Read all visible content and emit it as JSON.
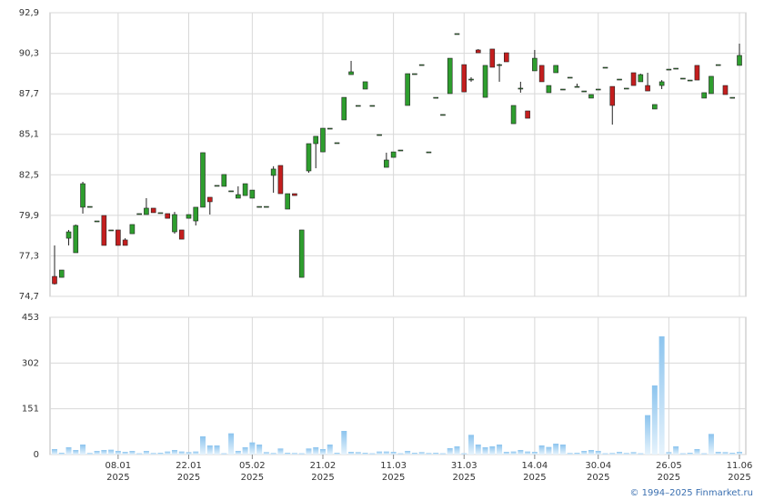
{
  "chart_data": {
    "type": "candlestick",
    "xticks": [
      {
        "value": 9,
        "label": "08.01",
        "year": "2025"
      },
      {
        "value": 19,
        "label": "22.01",
        "year": "2025"
      },
      {
        "value": 28,
        "label": "05.02",
        "year": "2025"
      },
      {
        "value": 38,
        "label": "21.02",
        "year": "2025"
      },
      {
        "value": 48,
        "label": "11.03",
        "year": "2025"
      },
      {
        "value": 58,
        "label": "31.03",
        "year": "2025"
      },
      {
        "value": 68,
        "label": "14.04",
        "year": "2025"
      },
      {
        "value": 77,
        "label": "30.04",
        "year": "2025"
      },
      {
        "value": 87,
        "label": "26.05",
        "year": "2025"
      },
      {
        "value": 97,
        "label": "11.06",
        "year": "2025"
      }
    ],
    "ylim": [
      74.7,
      92.9
    ],
    "yticks": [
      {
        "value": 92.9,
        "label": "92,9"
      },
      {
        "value": 90.3,
        "label": "90,3"
      },
      {
        "value": 87.7,
        "label": "87,7"
      },
      {
        "value": 85.1,
        "label": "85,1"
      },
      {
        "value": 82.5,
        "label": "82,5"
      },
      {
        "value": 79.9,
        "label": "79,9"
      },
      {
        "value": 77.3,
        "label": "77,3"
      },
      {
        "value": 74.7,
        "label": "74,7"
      }
    ],
    "vlim": [
      0,
      453
    ],
    "vticks": [
      453,
      302,
      151,
      0
    ],
    "up_color": "#2e9e2e",
    "down_color": "#c41e1e",
    "volume_color": "#8cc4ee",
    "grid": true,
    "open": [
      75.98,
      75.92,
      78.43,
      77.5,
      80.42,
      80.47,
      79.54,
      79.89,
      78.96,
      78.96,
      78.32,
      78.72,
      80.01,
      79.95,
      80.36,
      80.07,
      80.01,
      78.84,
      78.96,
      79.71,
      79.54,
      80.42,
      81.06,
      81.82,
      81.76,
      81.47,
      81.0,
      81.17,
      81.0,
      80.47,
      80.47,
      82.46,
      83.1,
      80.3,
      81.29,
      75.92,
      82.75,
      84.5,
      83.97,
      85.49,
      84.56,
      86.02,
      88.93,
      86.95,
      88.0,
      86.95,
      85.08,
      82.98,
      83.62,
      84.09,
      86.95,
      88.99,
      89.57,
      83.97,
      87.47,
      86.37,
      87.71,
      91.56,
      89.57,
      88.64,
      90.51,
      87.47,
      90.57,
      89.57,
      90.33,
      85.78,
      88.06,
      86.6,
      89.17,
      89.52,
      87.77,
      89.05,
      88.0,
      88.76,
      88.17,
      87.88,
      87.42,
      88.0,
      89.4,
      88.17,
      88.64,
      88.06,
      89.05,
      88.47,
      88.23,
      86.72,
      88.23,
      89.28,
      89.34,
      88.7,
      88.58,
      89.52,
      87.42,
      87.71,
      89.57,
      88.23,
      87.47,
      89.52
    ],
    "high": [
      77.97,
      76.39,
      78.96,
      79.31,
      82.05,
      80.47,
      79.54,
      79.89,
      78.96,
      78.96,
      78.43,
      79.31,
      80.01,
      81.0,
      80.36,
      80.07,
      80.01,
      80.12,
      78.96,
      79.95,
      80.42,
      83.92,
      81.06,
      81.82,
      82.52,
      81.47,
      81.76,
      81.93,
      81.52,
      80.47,
      80.47,
      83.05,
      83.1,
      81.29,
      81.29,
      78.96,
      84.5,
      84.97,
      85.49,
      85.49,
      84.56,
      87.47,
      89.81,
      86.95,
      88.47,
      86.95,
      85.08,
      83.92,
      83.97,
      84.09,
      88.99,
      88.99,
      89.57,
      83.97,
      87.47,
      86.37,
      89.98,
      91.56,
      89.57,
      88.76,
      90.57,
      89.52,
      90.57,
      89.63,
      90.33,
      86.95,
      88.47,
      86.6,
      90.51,
      89.52,
      88.23,
      89.52,
      88.0,
      88.76,
      88.35,
      87.88,
      87.65,
      88.0,
      89.4,
      88.17,
      88.64,
      88.06,
      89.05,
      88.99,
      89.05,
      87.01,
      88.58,
      89.28,
      89.34,
      88.7,
      88.58,
      89.52,
      87.77,
      88.82,
      89.57,
      88.23,
      87.47,
      90.92
    ],
    "low": [
      75.46,
      75.92,
      77.97,
      77.5,
      80.01,
      80.47,
      79.54,
      77.97,
      78.96,
      77.97,
      77.97,
      78.72,
      80.01,
      79.95,
      80.07,
      80.07,
      79.71,
      78.72,
      78.37,
      79.71,
      79.25,
      80.42,
      79.95,
      81.82,
      81.76,
      81.47,
      81.0,
      81.17,
      81.0,
      80.47,
      80.47,
      81.35,
      81.29,
      80.3,
      81.17,
      75.92,
      82.63,
      82.92,
      83.97,
      85.49,
      84.56,
      86.02,
      88.93,
      86.95,
      88.0,
      86.95,
      85.08,
      82.98,
      83.62,
      84.09,
      86.95,
      88.99,
      89.57,
      83.97,
      87.47,
      86.37,
      87.71,
      91.56,
      87.82,
      88.47,
      90.33,
      87.47,
      89.4,
      88.47,
      89.75,
      85.78,
      87.77,
      86.13,
      89.17,
      88.47,
      87.77,
      89.05,
      88.0,
      88.76,
      88.17,
      87.88,
      87.42,
      88.0,
      89.4,
      85.72,
      88.64,
      88.06,
      88.23,
      88.47,
      87.88,
      86.72,
      88.0,
      89.28,
      89.34,
      88.7,
      88.58,
      88.58,
      87.42,
      87.71,
      89.57,
      87.65,
      87.47,
      89.52
    ],
    "close": [
      75.51,
      76.39,
      78.84,
      79.25,
      81.93,
      80.47,
      79.54,
      77.97,
      78.96,
      77.97,
      77.97,
      79.31,
      80.01,
      80.36,
      80.07,
      80.07,
      79.71,
      79.95,
      78.37,
      79.95,
      80.42,
      83.92,
      80.77,
      81.82,
      82.52,
      81.47,
      81.23,
      81.93,
      81.52,
      80.47,
      80.47,
      82.87,
      81.29,
      81.29,
      81.17,
      78.96,
      84.5,
      84.97,
      85.49,
      85.49,
      84.56,
      87.47,
      89.11,
      86.95,
      88.47,
      86.95,
      85.08,
      83.45,
      83.97,
      84.09,
      88.99,
      88.99,
      89.57,
      83.97,
      87.47,
      86.37,
      89.98,
      91.56,
      87.82,
      88.64,
      90.33,
      89.52,
      89.4,
      89.57,
      89.75,
      86.95,
      88.06,
      86.13,
      89.98,
      88.47,
      88.23,
      89.52,
      88.0,
      88.76,
      88.17,
      87.88,
      87.65,
      88.0,
      89.4,
      86.95,
      88.64,
      88.06,
      88.23,
      88.93,
      87.88,
      87.01,
      88.47,
      89.28,
      89.34,
      88.7,
      88.58,
      88.58,
      87.77,
      88.82,
      89.57,
      87.65,
      87.47,
      90.16
    ],
    "volume": [
      18,
      6,
      24,
      15,
      33,
      5,
      12,
      15,
      16,
      12,
      9,
      12,
      4,
      12,
      5,
      6,
      10,
      15,
      10,
      8,
      10,
      60,
      30,
      30,
      4,
      70,
      12,
      24,
      40,
      33,
      8,
      5,
      20,
      6,
      5,
      4,
      20,
      24,
      18,
      33,
      6,
      78,
      9,
      8,
      6,
      4,
      10,
      10,
      9,
      4,
      12,
      6,
      8,
      5,
      6,
      4,
      21,
      27,
      4,
      65,
      33,
      24,
      27,
      33,
      9,
      10,
      15,
      10,
      9,
      30,
      25,
      36,
      33,
      5,
      6,
      12,
      15,
      12,
      4,
      5,
      9,
      5,
      8,
      4,
      130,
      228,
      390,
      8,
      27,
      4,
      6,
      18,
      4,
      68,
      9,
      8,
      6,
      9
    ]
  },
  "footer": {
    "copyright": "© 1994–2025 Finmarket.ru"
  }
}
